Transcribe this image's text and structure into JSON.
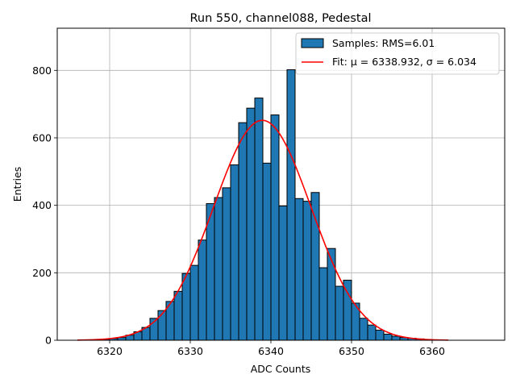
{
  "chart_data": {
    "type": "bar",
    "title": "Run 550, channel088, Pedestal",
    "xlabel": "ADC Counts",
    "ylabel": "Entries",
    "xlim": [
      6313.5,
      6369
    ],
    "ylim": [
      0,
      925
    ],
    "x_ticks": [
      6320,
      6330,
      6340,
      6350,
      6360
    ],
    "y_ticks": [
      0,
      200,
      400,
      600,
      800
    ],
    "grid": true,
    "legend_position": "top-right",
    "histogram": {
      "name": "Samples: RMS=6.01",
      "bin_width": 1,
      "bin_starts": [
        6319,
        6320,
        6321,
        6322,
        6323,
        6324,
        6325,
        6326,
        6327,
        6328,
        6329,
        6330,
        6331,
        6332,
        6333,
        6334,
        6335,
        6336,
        6337,
        6338,
        6339,
        6340,
        6341,
        6342,
        6343,
        6344,
        6345,
        6346,
        6347,
        6348,
        6349,
        6350,
        6351,
        6352,
        6353,
        6354,
        6355,
        6356,
        6357,
        6358,
        6359
      ],
      "values": [
        3,
        5,
        8,
        15,
        25,
        38,
        65,
        88,
        115,
        145,
        198,
        222,
        297,
        405,
        423,
        452,
        520,
        645,
        688,
        718,
        525,
        668,
        398,
        802,
        420,
        412,
        438,
        215,
        272,
        160,
        178,
        110,
        65,
        45,
        30,
        18,
        12,
        8,
        6,
        4,
        2
      ]
    },
    "fit": {
      "name": "Fit: μ = 6338.932, σ = 6.034",
      "mu": 6338.932,
      "sigma": 6.034,
      "amplitude": 652,
      "x_range": [
        6316,
        6362
      ],
      "color": "#ff0000"
    },
    "bar_color": "#1f77b4",
    "legend": [
      {
        "label": "Samples: RMS=6.01",
        "kind": "patch",
        "color": "#1f77b4"
      },
      {
        "label": "Fit: μ = 6338.932, σ = 6.034",
        "kind": "line",
        "color": "#ff0000"
      }
    ]
  }
}
